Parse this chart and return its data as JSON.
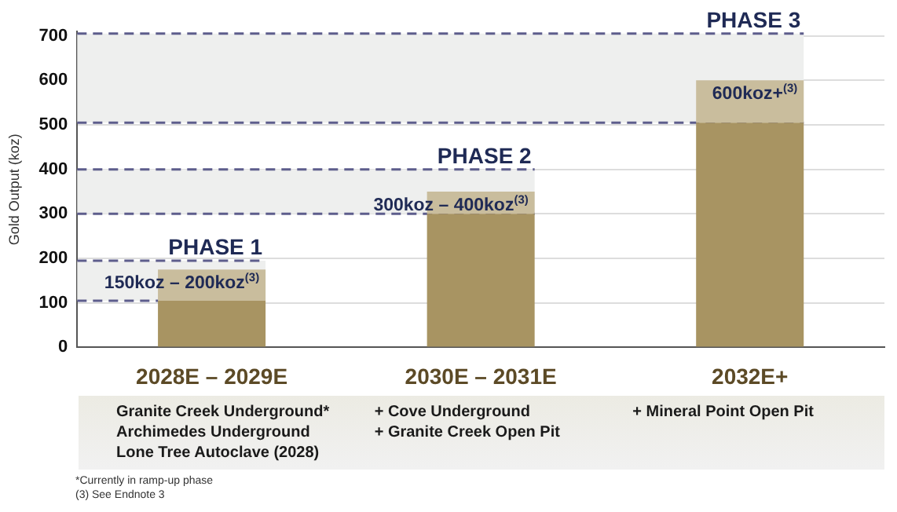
{
  "chart_data": {
    "type": "bar",
    "stacked": true,
    "ylabel": "Gold Output (koz)",
    "categories": [
      "2028E – 2029E",
      "2030E – 2031E",
      "2032E+"
    ],
    "series": [
      {
        "color": "#a89462",
        "values": [
          105,
          300,
          505
        ]
      },
      {
        "color": "#c9bd9d",
        "values": [
          70,
          50,
          95
        ]
      }
    ],
    "ylim": [
      0,
      710
    ],
    "yticks": [
      0,
      100,
      200,
      300,
      400,
      500,
      600,
      700
    ],
    "grid": "y",
    "legend": false,
    "bands": [
      {
        "axis": "y",
        "from": 105,
        "to": 195,
        "label": "PHASE 1",
        "color": "#eeefee"
      },
      {
        "axis": "y",
        "from": 300,
        "to": 400,
        "label": "PHASE 2",
        "color": "#eeefee"
      },
      {
        "axis": "y",
        "from": 505,
        "to": 705,
        "label": "PHASE 3",
        "color": "#eeefee"
      }
    ],
    "ref_lines": [
      {
        "axis": "y",
        "value": 105,
        "color": "#5d5d8c",
        "line_style": "dashed"
      },
      {
        "axis": "y",
        "value": 195,
        "color": "#5d5d8c",
        "line_style": "dashed"
      },
      {
        "axis": "y",
        "value": 300,
        "color": "#5d5d8c",
        "line_style": "dashed"
      },
      {
        "axis": "y",
        "value": 400,
        "color": "#5d5d8c",
        "line_style": "dashed"
      },
      {
        "axis": "y",
        "value": 505,
        "color": "#5d5d8c",
        "line_style": "dashed"
      },
      {
        "axis": "y",
        "value": 705,
        "color": "#5d5d8c",
        "line_style": "dashed"
      }
    ],
    "annotations": [
      {
        "text": "150koz – 200koz$^{(3)}$",
        "x": "2028E – 2029E",
        "y": 175
      },
      {
        "text": "300koz – 400koz$^{(3)}$",
        "x": "2030E – 2031E",
        "y": 350
      },
      {
        "text": "600koz+$^{(3)}$",
        "x": "2032E+",
        "y": 600
      },
      "Granite Creek Underground*\nArchimedes Underground\nLone Tree Autoclave (2028)",
      "+ Cove Underground\n+ Granite Creek Open Pit",
      "+ Mineral Point Open Pit",
      "*Currently in ramp-up phase",
      "(3) See Endnote 3"
    ]
  }
}
